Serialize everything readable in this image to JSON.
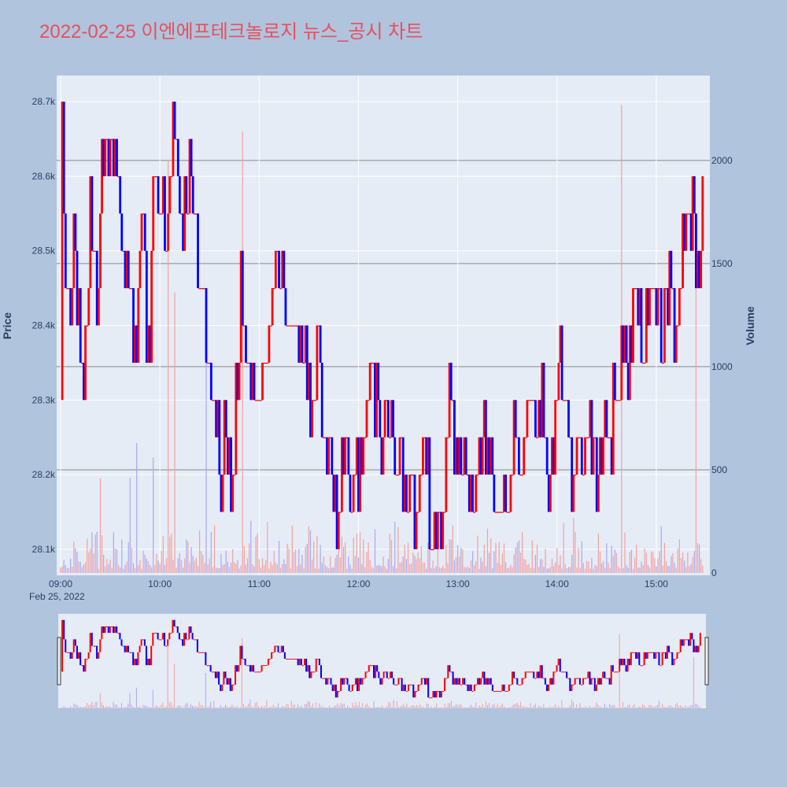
{
  "chart_data": {
    "type": "candlestick",
    "title": "2022-02-25 이엔에프테크놀로지 뉴스_공시 차트",
    "ylabel": "Price",
    "y2label": "Volume",
    "date_label": "Feb 25, 2022",
    "x_range": [
      "09:00",
      "15:30"
    ],
    "ylim": [
      28065,
      28735
    ],
    "y_ticks": [
      {
        "value": 28100,
        "label": "28.1k"
      },
      {
        "value": 28200,
        "label": "28.2k"
      },
      {
        "value": 28300,
        "label": "28.3k"
      },
      {
        "value": 28400,
        "label": "28.4k"
      },
      {
        "value": 28500,
        "label": "28.5k"
      },
      {
        "value": 28600,
        "label": "28.6k"
      },
      {
        "value": 28700,
        "label": "28.7k"
      }
    ],
    "volume_ylim": [
      0,
      2400
    ],
    "volume_ticks": [
      {
        "value": 0,
        "label": "0"
      },
      {
        "value": 500,
        "label": "500"
      },
      {
        "value": 1000,
        "label": "1000"
      },
      {
        "value": 1500,
        "label": "1500"
      },
      {
        "value": 2000,
        "label": "2000"
      }
    ],
    "x_ticks": [
      {
        "minute": 0,
        "label": "09:00"
      },
      {
        "minute": 60,
        "label": "10:00"
      },
      {
        "minute": 120,
        "label": "11:00"
      },
      {
        "minute": 180,
        "label": "12:00"
      },
      {
        "minute": 240,
        "label": "13:00"
      },
      {
        "minute": 300,
        "label": "14:00"
      },
      {
        "minute": 360,
        "label": "15:00"
      }
    ],
    "colors": {
      "up": "#ff0000",
      "down": "#0000ff",
      "paper": "#b0c4de",
      "plot": "#e5ecf6",
      "title": "#e8505b"
    },
    "price_anchors": [
      [
        0,
        28300
      ],
      [
        1,
        28700
      ],
      [
        3,
        28450
      ],
      [
        6,
        28400
      ],
      [
        8,
        28500
      ],
      [
        10,
        28450
      ],
      [
        12,
        28300
      ],
      [
        14,
        28350
      ],
      [
        16,
        28400
      ],
      [
        18,
        28600
      ],
      [
        20,
        28500
      ],
      [
        23,
        28450
      ],
      [
        25,
        28600
      ],
      [
        27,
        28650
      ],
      [
        30,
        28600
      ],
      [
        35,
        28600
      ],
      [
        38,
        28500
      ],
      [
        42,
        28450
      ],
      [
        44,
        28400
      ],
      [
        46,
        28350
      ],
      [
        48,
        28500
      ],
      [
        50,
        28600
      ],
      [
        52,
        28400
      ],
      [
        54,
        28350
      ],
      [
        56,
        28600
      ],
      [
        60,
        28550
      ],
      [
        62,
        28600
      ],
      [
        64,
        28500
      ],
      [
        66,
        28550
      ],
      [
        68,
        28700
      ],
      [
        70,
        28600
      ],
      [
        74,
        28500
      ],
      [
        78,
        28600
      ],
      [
        82,
        28500
      ],
      [
        86,
        28450
      ],
      [
        88,
        28400
      ],
      [
        91,
        28350
      ],
      [
        95,
        28250
      ],
      [
        98,
        28200
      ],
      [
        100,
        28250
      ],
      [
        103,
        28150
      ],
      [
        106,
        28300
      ],
      [
        109,
        28450
      ],
      [
        112,
        28350
      ],
      [
        116,
        28300
      ],
      [
        120,
        28300
      ],
      [
        124,
        28350
      ],
      [
        127,
        28400
      ],
      [
        130,
        28500
      ],
      [
        133,
        28450
      ],
      [
        137,
        28400
      ],
      [
        142,
        28400
      ],
      [
        148,
        28350
      ],
      [
        152,
        28300
      ],
      [
        156,
        28350
      ],
      [
        158,
        28250
      ],
      [
        162,
        28250
      ],
      [
        165,
        28200
      ],
      [
        168,
        28150
      ],
      [
        170,
        28200
      ],
      [
        173,
        28250
      ],
      [
        176,
        28200
      ],
      [
        180,
        28200
      ],
      [
        183,
        28200
      ],
      [
        185,
        28300
      ],
      [
        188,
        28350
      ],
      [
        191,
        28300
      ],
      [
        193,
        28250
      ],
      [
        196,
        28300
      ],
      [
        199,
        28250
      ],
      [
        202,
        28200
      ],
      [
        206,
        28250
      ],
      [
        209,
        28150
      ],
      [
        212,
        28200
      ],
      [
        215,
        28150
      ],
      [
        218,
        28200
      ],
      [
        220,
        28250
      ],
      [
        223,
        28150
      ],
      [
        226,
        28100
      ],
      [
        229,
        28150
      ],
      [
        232,
        28200
      ],
      [
        236,
        28300
      ],
      [
        240,
        28200
      ],
      [
        243,
        28250
      ],
      [
        246,
        28200
      ],
      [
        250,
        28150
      ],
      [
        254,
        28250
      ],
      [
        258,
        28200
      ],
      [
        262,
        28200
      ],
      [
        266,
        28150
      ],
      [
        270,
        28200
      ],
      [
        274,
        28250
      ],
      [
        278,
        28200
      ],
      [
        282,
        28250
      ],
      [
        286,
        28300
      ],
      [
        289,
        28250
      ],
      [
        292,
        28300
      ],
      [
        295,
        28200
      ],
      [
        298,
        28250
      ],
      [
        301,
        28350
      ],
      [
        304,
        28300
      ],
      [
        307,
        28250
      ],
      [
        310,
        28200
      ],
      [
        313,
        28250
      ],
      [
        316,
        28200
      ],
      [
        320,
        28250
      ],
      [
        324,
        28200
      ],
      [
        328,
        28250
      ],
      [
        332,
        28250
      ],
      [
        336,
        28300
      ],
      [
        339,
        28400
      ],
      [
        342,
        28350
      ],
      [
        345,
        28400
      ],
      [
        348,
        28450
      ],
      [
        351,
        28350
      ],
      [
        354,
        28400
      ],
      [
        357,
        28450
      ],
      [
        360,
        28450
      ],
      [
        363,
        28400
      ],
      [
        366,
        28450
      ],
      [
        369,
        28450
      ],
      [
        372,
        28400
      ],
      [
        375,
        28450
      ],
      [
        377,
        28500
      ],
      [
        379,
        28550
      ],
      [
        381,
        28500
      ],
      [
        383,
        28550
      ],
      [
        386,
        28450
      ],
      [
        388,
        28650
      ]
    ],
    "volume_spikes": [
      {
        "minute": 24,
        "value": 460,
        "dir": "up"
      },
      {
        "minute": 42,
        "value": 460,
        "dir": "down"
      },
      {
        "minute": 46,
        "value": 630,
        "dir": "down"
      },
      {
        "minute": 56,
        "value": 560,
        "dir": "down"
      },
      {
        "minute": 65,
        "value": 2000,
        "dir": "up"
      },
      {
        "minute": 69,
        "value": 1360,
        "dir": "up"
      },
      {
        "minute": 88,
        "value": 1080,
        "dir": "down"
      },
      {
        "minute": 110,
        "value": 2140,
        "dir": "up"
      },
      {
        "minute": 339,
        "value": 2270,
        "dir": "up"
      },
      {
        "minute": 384,
        "value": 1550,
        "dir": "up"
      }
    ],
    "navigator": {
      "present": true
    }
  }
}
